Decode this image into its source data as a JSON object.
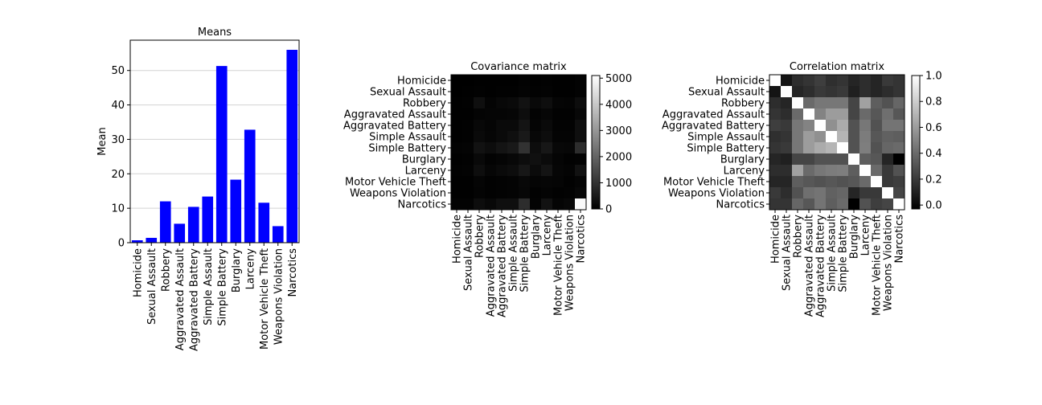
{
  "chart_data": [
    {
      "type": "bar",
      "title": "Means",
      "xlabel": "",
      "ylabel": "Mean",
      "categories": [
        "Homicide",
        "Sexual Assault",
        "Robbery",
        "Aggravated Assault",
        "Aggravated Battery",
        "Simple Assault",
        "Simple Battery",
        "Burglary",
        "Larceny",
        "Motor Vehicle Theft",
        "Weapons Violation",
        "Narcotics"
      ],
      "values": [
        0.7,
        1.4,
        12.0,
        5.5,
        10.4,
        13.4,
        51.3,
        18.3,
        32.8,
        11.6,
        4.8,
        56.0
      ],
      "ylim": [
        0,
        58.8
      ],
      "yticks": [
        0,
        10,
        20,
        30,
        40,
        50
      ],
      "grid": "y",
      "color": "#0000ff"
    },
    {
      "type": "heatmap",
      "title": "Covariance matrix",
      "labels": [
        "Homicide",
        "Sexual Assault",
        "Robbery",
        "Aggravated Assault",
        "Aggravated Battery",
        "Simple Assault",
        "Simple Battery",
        "Burglary",
        "Larceny",
        "Motor Vehicle Theft",
        "Weapons Violation",
        "Narcotics"
      ],
      "colormap": "gray",
      "colorbar": {
        "min": 0,
        "max": 5100,
        "ticks": [
          0,
          1000,
          2000,
          3000,
          4000,
          5000
        ]
      },
      "values": [
        [
          5,
          2,
          20,
          10,
          20,
          25,
          60,
          20,
          40,
          15,
          10,
          50
        ],
        [
          2,
          20,
          30,
          20,
          30,
          40,
          80,
          30,
          50,
          20,
          12,
          60
        ],
        [
          20,
          30,
          300,
          80,
          150,
          200,
          350,
          180,
          280,
          100,
          70,
          250
        ],
        [
          10,
          20,
          80,
          100,
          100,
          120,
          250,
          60,
          120,
          40,
          40,
          150
        ],
        [
          20,
          30,
          150,
          100,
          200,
          200,
          400,
          100,
          200,
          60,
          60,
          300
        ],
        [
          25,
          40,
          200,
          120,
          200,
          300,
          500,
          150,
          250,
          80,
          70,
          300
        ],
        [
          60,
          80,
          350,
          250,
          400,
          500,
          1000,
          250,
          450,
          150,
          130,
          900
        ],
        [
          20,
          30,
          180,
          60,
          100,
          150,
          250,
          320,
          220,
          90,
          40,
          50
        ],
        [
          40,
          50,
          280,
          120,
          200,
          250,
          450,
          220,
          400,
          120,
          70,
          350
        ],
        [
          15,
          20,
          100,
          40,
          60,
          80,
          150,
          90,
          120,
          100,
          30,
          100
        ],
        [
          10,
          12,
          70,
          40,
          60,
          70,
          130,
          40,
          70,
          30,
          60,
          150
        ],
        [
          50,
          60,
          250,
          150,
          300,
          300,
          900,
          50,
          350,
          100,
          150,
          5000
        ]
      ]
    },
    {
      "type": "heatmap",
      "title": "Correlation matrix",
      "labels": [
        "Homicide",
        "Sexual Assault",
        "Robbery",
        "Aggravated Assault",
        "Aggravated Battery",
        "Simple Assault",
        "Simple Battery",
        "Burglary",
        "Larceny",
        "Motor Vehicle Theft",
        "Weapons Violation",
        "Narcotics"
      ],
      "colormap": "gray",
      "colorbar": {
        "min": -0.03,
        "max": 1.0,
        "ticks": [
          0.0,
          0.2,
          0.4,
          0.6,
          0.8,
          1.0
        ]
      },
      "values": [
        [
          1.0,
          0.05,
          0.15,
          0.18,
          0.22,
          0.16,
          0.18,
          0.12,
          0.15,
          0.12,
          0.2,
          0.18
        ],
        [
          0.05,
          1.0,
          0.12,
          0.15,
          0.2,
          0.18,
          0.2,
          0.1,
          0.15,
          0.12,
          0.15,
          0.18
        ],
        [
          0.15,
          0.12,
          1.0,
          0.4,
          0.45,
          0.45,
          0.45,
          0.25,
          0.62,
          0.35,
          0.3,
          0.38
        ],
        [
          0.18,
          0.15,
          0.4,
          1.0,
          0.5,
          0.6,
          0.6,
          0.25,
          0.4,
          0.32,
          0.42,
          0.32
        ],
        [
          0.22,
          0.2,
          0.45,
          0.5,
          1.0,
          0.55,
          0.66,
          0.3,
          0.45,
          0.3,
          0.44,
          0.44
        ],
        [
          0.16,
          0.18,
          0.45,
          0.6,
          0.55,
          1.0,
          0.7,
          0.3,
          0.47,
          0.32,
          0.36,
          0.35
        ],
        [
          0.18,
          0.2,
          0.45,
          0.6,
          0.66,
          0.7,
          1.0,
          0.3,
          0.48,
          0.3,
          0.38,
          0.4
        ],
        [
          0.12,
          0.1,
          0.25,
          0.25,
          0.3,
          0.3,
          0.3,
          1.0,
          0.35,
          0.32,
          0.12,
          -0.03
        ],
        [
          0.15,
          0.15,
          0.62,
          0.4,
          0.45,
          0.47,
          0.48,
          0.35,
          1.0,
          0.4,
          0.2,
          0.3
        ],
        [
          0.12,
          0.12,
          0.35,
          0.32,
          0.3,
          0.32,
          0.3,
          0.32,
          0.4,
          1.0,
          0.2,
          0.22
        ],
        [
          0.2,
          0.15,
          0.3,
          0.42,
          0.44,
          0.36,
          0.38,
          0.12,
          0.2,
          0.2,
          1.0,
          0.25
        ],
        [
          0.18,
          0.18,
          0.38,
          0.32,
          0.44,
          0.35,
          0.4,
          -0.03,
          0.3,
          0.22,
          0.25,
          1.0
        ]
      ]
    }
  ]
}
